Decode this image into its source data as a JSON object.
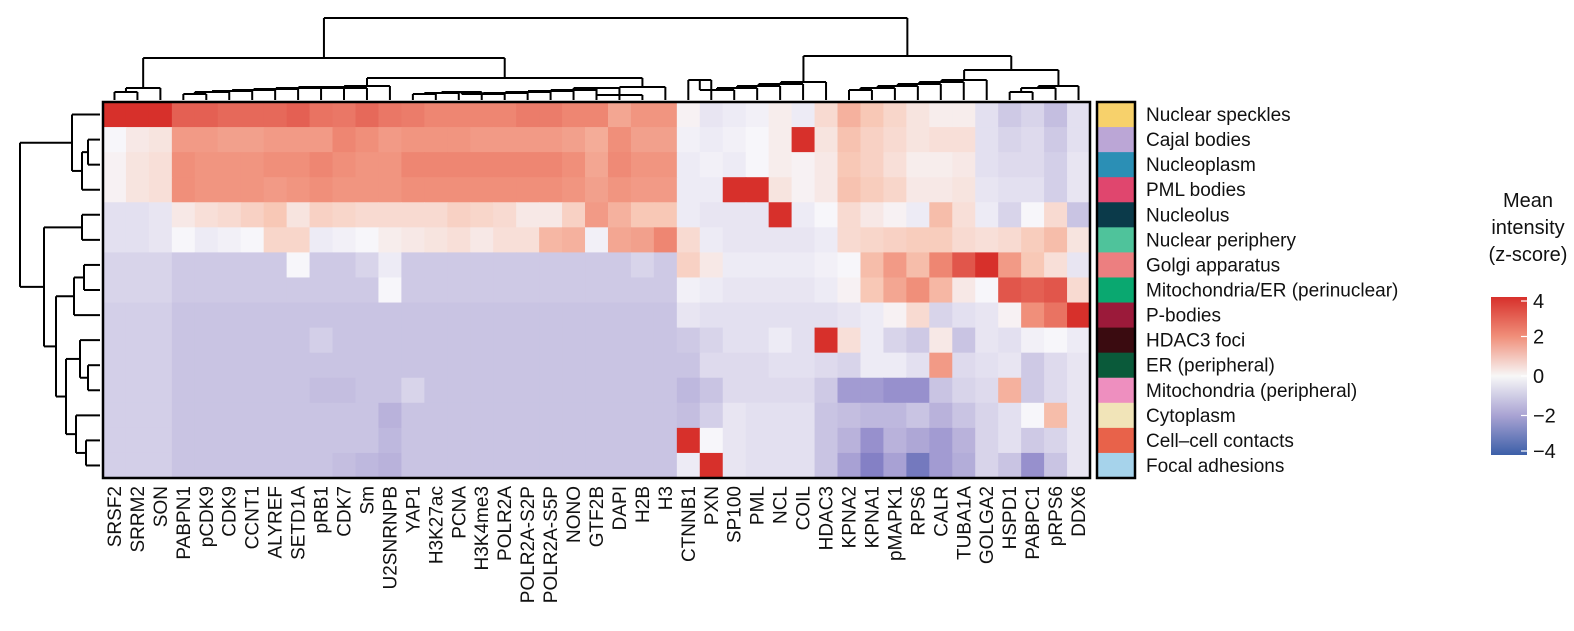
{
  "chart_data": {
    "type": "heatmap",
    "title": "",
    "xlabel": "",
    "ylabel": "",
    "columns": [
      "SRSF2",
      "SRRM2",
      "SON",
      "PABPN1",
      "pCDK9",
      "CDK9",
      "CCNT1",
      "ALYREF",
      "SETD1A",
      "pRB1",
      "CDK7",
      "Sm",
      "U2SNRNPB",
      "YAP1",
      "H3K27ac",
      "PCNA",
      "H3K4me3",
      "POLR2A",
      "POLR2A-S2P",
      "POLR2A-S5P",
      "NONO",
      "GTF2B",
      "DAPI",
      "H2B",
      "H3",
      "CTNNB1",
      "PXN",
      "SP100",
      "PML",
      "NCL",
      "COIL",
      "HDAC3",
      "KPNA2",
      "KPNA1",
      "pMAPK1",
      "RPS6",
      "CALR",
      "TUBA1A",
      "GOLGA2",
      "HSPD1",
      "PABPC1",
      "pRPS6",
      "DDX6"
    ],
    "rows": [
      "Nuclear speckles",
      "Cajal bodies",
      "Nucleoplasm",
      "PML bodies",
      "Nucleolus",
      "Nuclear periphery",
      "Golgi apparatus",
      "Mitochondria/ER (perinuclear)",
      "P-bodies",
      "HDAC3 foci",
      "ER (peripheral)",
      "Mitochondria (peripheral)",
      "Cytoplasm",
      "Cell–cell contacts",
      "Focal adhesions"
    ],
    "row_colors": [
      "#f7d16b",
      "#bba6d6",
      "#2b8fb5",
      "#e0466e",
      "#0b3a4a",
      "#4fc39b",
      "#ec7f80",
      "#0aa870",
      "#9b1a3a",
      "#3a0b10",
      "#0a5a3a",
      "#ee8fbf",
      "#f1e4b8",
      "#e8624a",
      "#a6d3eb"
    ],
    "values": [
      [
        4.0,
        4.0,
        4.0,
        3.0,
        3.0,
        2.8,
        2.8,
        2.8,
        3.0,
        2.6,
        2.5,
        2.8,
        2.5,
        2.4,
        2.2,
        2.2,
        2.2,
        2.2,
        2.4,
        2.4,
        2.2,
        2.2,
        1.6,
        1.9,
        1.9,
        0.1,
        -0.3,
        -0.2,
        -0.1,
        0.2,
        -0.2,
        0.6,
        1.4,
        1.0,
        0.7,
        0.4,
        0.2,
        0.2,
        -0.4,
        -0.8,
        -0.6,
        -1.0,
        -0.4
      ],
      [
        0.0,
        0.3,
        0.4,
        1.8,
        1.8,
        1.7,
        1.7,
        1.8,
        1.8,
        1.8,
        2.2,
        2.0,
        1.8,
        1.9,
        1.9,
        1.9,
        1.8,
        1.8,
        1.8,
        1.8,
        1.7,
        1.5,
        2.0,
        1.7,
        1.7,
        -0.1,
        -0.2,
        -0.1,
        0.0,
        0.2,
        4.0,
        0.4,
        1.1,
        0.8,
        0.6,
        0.4,
        0.5,
        0.5,
        -0.4,
        -0.6,
        -0.5,
        -0.8,
        -0.4
      ],
      [
        0.1,
        0.4,
        0.5,
        2.0,
        1.9,
        1.9,
        1.9,
        2.0,
        2.0,
        2.2,
        2.0,
        1.9,
        1.9,
        2.2,
        2.2,
        2.2,
        2.2,
        2.2,
        2.2,
        2.2,
        2.0,
        1.6,
        2.1,
        1.9,
        1.9,
        -0.2,
        -0.1,
        -0.2,
        0.0,
        0.2,
        0.1,
        0.3,
        1.0,
        0.8,
        0.5,
        0.2,
        0.2,
        0.3,
        -0.4,
        -0.5,
        -0.5,
        -0.7,
        -0.3
      ],
      [
        0.1,
        0.4,
        0.5,
        2.0,
        1.9,
        1.9,
        1.9,
        1.8,
        1.9,
        2.0,
        1.9,
        1.9,
        1.9,
        2.0,
        2.0,
        2.0,
        2.0,
        2.0,
        2.0,
        2.0,
        1.9,
        1.7,
        1.9,
        1.8,
        1.8,
        -0.2,
        -0.2,
        4.0,
        4.0,
        0.4,
        0.1,
        0.3,
        1.1,
        0.9,
        0.7,
        0.3,
        0.3,
        0.4,
        -0.3,
        -0.4,
        -0.4,
        -0.7,
        -0.3
      ],
      [
        -0.4,
        -0.4,
        -0.3,
        0.3,
        0.5,
        0.6,
        0.8,
        1.0,
        0.4,
        0.8,
        0.7,
        0.6,
        0.6,
        0.6,
        0.6,
        0.8,
        0.7,
        0.6,
        0.3,
        0.3,
        0.8,
        1.8,
        1.4,
        1.0,
        1.0,
        -0.2,
        -0.3,
        -0.3,
        -0.3,
        4.0,
        -0.2,
        0.0,
        0.6,
        0.3,
        0.1,
        -0.2,
        1.2,
        0.5,
        -0.2,
        -0.6,
        0.0,
        0.6,
        -0.9
      ],
      [
        -0.4,
        -0.4,
        -0.3,
        0.0,
        -0.2,
        -0.1,
        0.0,
        0.7,
        0.7,
        -0.2,
        -0.1,
        0.0,
        0.2,
        0.3,
        0.4,
        0.5,
        0.3,
        0.5,
        0.5,
        1.3,
        1.4,
        -0.1,
        1.6,
        1.7,
        2.2,
        0.6,
        -0.2,
        -0.3,
        -0.3,
        -0.3,
        -0.3,
        -0.2,
        0.6,
        0.7,
        0.8,
        0.9,
        0.9,
        0.6,
        0.5,
        0.6,
        0.9,
        1.2,
        0.4
      ],
      [
        -0.6,
        -0.6,
        -0.6,
        -0.8,
        -0.8,
        -0.8,
        -0.8,
        -0.8,
        0.0,
        -0.8,
        -0.8,
        -0.6,
        -0.2,
        -0.8,
        -0.8,
        -0.8,
        -0.8,
        -0.8,
        -0.8,
        -0.8,
        -0.8,
        -0.8,
        -0.8,
        -0.6,
        -0.8,
        0.8,
        0.3,
        -0.2,
        -0.2,
        -0.2,
        -0.2,
        -0.1,
        0.0,
        1.2,
        1.8,
        1.2,
        2.2,
        3.2,
        4.0,
        1.8,
        1.0,
        0.5,
        -0.3
      ],
      [
        -0.6,
        -0.6,
        -0.6,
        -0.8,
        -0.8,
        -0.8,
        -0.8,
        -0.8,
        -0.8,
        -0.8,
        -0.8,
        -0.8,
        0.0,
        -0.8,
        -0.8,
        -0.8,
        -0.8,
        -0.8,
        -0.8,
        -0.8,
        -0.8,
        -0.8,
        -0.8,
        -0.8,
        -0.8,
        -0.1,
        -0.2,
        -0.3,
        -0.3,
        -0.3,
        -0.3,
        -0.2,
        0.1,
        1.0,
        1.6,
        2.0,
        1.3,
        0.3,
        0.0,
        3.2,
        3.0,
        3.2,
        0.6
      ],
      [
        -0.7,
        -0.7,
        -0.7,
        -0.9,
        -0.9,
        -0.9,
        -0.9,
        -0.9,
        -0.9,
        -0.9,
        -0.9,
        -0.9,
        -0.9,
        -0.9,
        -0.9,
        -0.9,
        -0.9,
        -0.9,
        -0.9,
        -0.9,
        -0.9,
        -0.9,
        -0.9,
        -0.9,
        -0.9,
        -0.3,
        -0.4,
        -0.4,
        -0.4,
        -0.4,
        -0.4,
        -0.4,
        -0.3,
        -0.2,
        0.1,
        0.6,
        -0.6,
        -0.4,
        -0.3,
        0.1,
        2.0,
        2.6,
        4.0
      ],
      [
        -0.7,
        -0.7,
        -0.7,
        -0.9,
        -0.9,
        -0.9,
        -0.9,
        -0.9,
        -0.9,
        -0.7,
        -0.9,
        -0.9,
        -0.9,
        -0.9,
        -0.9,
        -0.9,
        -0.9,
        -0.9,
        -0.9,
        -0.9,
        -0.9,
        -0.9,
        -0.9,
        -0.9,
        -0.9,
        -0.8,
        -0.6,
        -0.4,
        -0.4,
        -0.2,
        -0.4,
        4.0,
        0.5,
        -0.2,
        -0.6,
        -0.8,
        0.3,
        -0.9,
        -0.3,
        -0.4,
        -0.1,
        0.0,
        -0.2
      ],
      [
        -0.7,
        -0.7,
        -0.7,
        -0.9,
        -0.9,
        -0.9,
        -0.9,
        -0.9,
        -0.9,
        -0.9,
        -0.9,
        -0.9,
        -0.9,
        -0.9,
        -0.9,
        -0.9,
        -0.9,
        -0.9,
        -0.9,
        -0.9,
        -0.9,
        -0.9,
        -0.9,
        -0.9,
        -0.9,
        -0.9,
        -0.5,
        -0.5,
        -0.5,
        -0.4,
        -0.4,
        -0.5,
        -0.6,
        -0.2,
        -0.2,
        -0.4,
        1.8,
        -0.5,
        -0.4,
        -0.3,
        -0.8,
        -0.5,
        -0.3
      ],
      [
        -0.7,
        -0.7,
        -0.7,
        -0.9,
        -0.9,
        -0.9,
        -0.9,
        -0.9,
        -0.9,
        -1.0,
        -1.0,
        -0.9,
        -0.9,
        -0.6,
        -0.9,
        -0.9,
        -0.9,
        -0.9,
        -0.9,
        -0.9,
        -0.9,
        -0.9,
        -0.9,
        -0.9,
        -0.9,
        -1.1,
        -0.9,
        -0.5,
        -0.5,
        -0.5,
        -0.5,
        -0.8,
        -1.6,
        -1.6,
        -1.8,
        -1.8,
        -0.9,
        -0.6,
        -0.5,
        1.4,
        -0.8,
        -0.5,
        -0.3
      ],
      [
        -0.7,
        -0.7,
        -0.7,
        -0.9,
        -0.9,
        -0.9,
        -0.9,
        -0.9,
        -0.9,
        -0.9,
        -0.9,
        -0.9,
        -1.2,
        -0.9,
        -0.9,
        -0.9,
        -0.9,
        -0.9,
        -0.9,
        -0.9,
        -0.9,
        -0.9,
        -0.9,
        -0.9,
        -0.9,
        -1.0,
        -0.7,
        -0.3,
        -0.4,
        -0.4,
        -0.4,
        -0.9,
        -1.0,
        -1.1,
        -1.1,
        -0.9,
        -1.2,
        -0.9,
        -0.6,
        -0.4,
        0.0,
        1.2,
        -0.3
      ],
      [
        -0.7,
        -0.7,
        -0.7,
        -0.9,
        -0.9,
        -0.9,
        -0.9,
        -0.9,
        -0.9,
        -0.9,
        -0.9,
        -0.9,
        -1.1,
        -0.9,
        -0.9,
        -0.9,
        -0.9,
        -0.9,
        -0.9,
        -0.9,
        -0.9,
        -0.9,
        -0.9,
        -0.9,
        -0.9,
        4.0,
        0.0,
        -0.3,
        -0.4,
        -0.4,
        -0.4,
        -0.9,
        -1.2,
        -1.8,
        -1.2,
        -1.4,
        -1.6,
        -1.2,
        -0.6,
        -0.4,
        -0.8,
        -0.6,
        -0.3
      ],
      [
        -0.7,
        -0.7,
        -0.7,
        -0.9,
        -0.9,
        -0.9,
        -0.9,
        -0.9,
        -0.9,
        -0.9,
        -1.0,
        -1.1,
        -1.2,
        -0.9,
        -0.9,
        -0.9,
        -0.9,
        -0.9,
        -0.9,
        -0.9,
        -0.9,
        -0.9,
        -0.9,
        -0.9,
        -0.9,
        -0.2,
        4.0,
        -0.3,
        -0.4,
        -0.4,
        -0.4,
        -0.9,
        -1.5,
        -2.2,
        -1.5,
        -2.6,
        -1.6,
        -1.3,
        -0.6,
        -0.9,
        -1.8,
        -0.9,
        -0.3
      ]
    ],
    "colorbar": {
      "title_lines": [
        "Mean",
        "intensity",
        "(z-score)"
      ],
      "range": [
        -4,
        4
      ],
      "ticks": [
        "4",
        "2",
        "0",
        "−2",
        "−4"
      ],
      "colors": [
        "#d7302b",
        "#f7f7f7",
        "#3c5fa8"
      ]
    }
  }
}
